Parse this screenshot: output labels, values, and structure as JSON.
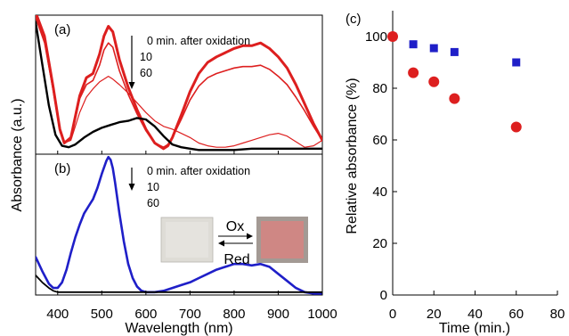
{
  "figure": {
    "panel_a_label": "(a)",
    "panel_b_label": "(b)",
    "panel_c_label": "(c)",
    "left_xlabel": "Wavelength (nm)",
    "left_ylabel": "Absorbance (a.u.)",
    "left_xticks": [
      "400",
      "500",
      "600",
      "700",
      "800",
      "900",
      "1000"
    ],
    "a_legend": [
      "0 min. after oxidation",
      "10",
      "60"
    ],
    "b_legend": [
      "0 min. after oxidation",
      "10",
      "60"
    ],
    "inset_ox": "Ox",
    "inset_red": "Red",
    "c_xlabel": "Time (min.)",
    "c_ylabel": "Relative absorbance (%)",
    "c_xticks": [
      "0",
      "20",
      "40",
      "60",
      "80"
    ],
    "c_yticks": [
      "0",
      "20",
      "40",
      "60",
      "80",
      "100"
    ],
    "colors": {
      "red": "#dd1f1f",
      "blue": "#1f1fc8",
      "black": "#000000"
    }
  },
  "chart_data": [
    {
      "type": "line",
      "panel": "a",
      "xlabel": "Wavelength (nm)",
      "ylabel": "Absorbance (a.u.)",
      "xlim": [
        350,
        1000
      ],
      "ylim": [
        0,
        1
      ],
      "series": [
        {
          "color": "#dd1f1f",
          "width": 3,
          "x": [
            350,
            370,
            390,
            405,
            415,
            430,
            450,
            465,
            480,
            495,
            505,
            515,
            525,
            540,
            560,
            580,
            600,
            620,
            640,
            650,
            660,
            680,
            700,
            720,
            740,
            760,
            780,
            800,
            820,
            840,
            860,
            880,
            900,
            920,
            940,
            960,
            980,
            1000
          ],
          "y": [
            1.02,
            0.85,
            0.48,
            0.18,
            0.08,
            0.12,
            0.42,
            0.55,
            0.58,
            0.72,
            0.85,
            0.92,
            0.88,
            0.68,
            0.48,
            0.32,
            0.18,
            0.08,
            0.04,
            0.06,
            0.12,
            0.28,
            0.45,
            0.58,
            0.66,
            0.7,
            0.73,
            0.76,
            0.78,
            0.78,
            0.8,
            0.76,
            0.7,
            0.62,
            0.5,
            0.36,
            0.22,
            0.1
          ]
        },
        {
          "color": "#dd1f1f",
          "width": 1.6,
          "x": [
            350,
            370,
            390,
            405,
            415,
            430,
            450,
            465,
            480,
            495,
            505,
            515,
            525,
            540,
            560,
            580,
            600,
            620,
            640,
            650,
            660,
            680,
            700,
            720,
            740,
            760,
            780,
            800,
            820,
            840,
            860,
            880,
            900,
            920,
            940,
            960,
            980,
            1000
          ],
          "y": [
            1.0,
            0.82,
            0.46,
            0.17,
            0.08,
            0.11,
            0.4,
            0.5,
            0.53,
            0.64,
            0.75,
            0.8,
            0.77,
            0.6,
            0.43,
            0.29,
            0.17,
            0.08,
            0.05,
            0.07,
            0.12,
            0.25,
            0.39,
            0.49,
            0.55,
            0.58,
            0.6,
            0.62,
            0.63,
            0.63,
            0.64,
            0.61,
            0.56,
            0.5,
            0.41,
            0.31,
            0.2,
            0.1
          ]
        },
        {
          "color": "#dd1f1f",
          "width": 1.2,
          "x": [
            350,
            370,
            390,
            405,
            415,
            430,
            450,
            465,
            480,
            495,
            505,
            515,
            525,
            540,
            560,
            580,
            600,
            620,
            640,
            660,
            680,
            700,
            720,
            740,
            760,
            780,
            800,
            820,
            840,
            860,
            880,
            900,
            920,
            940,
            960,
            980,
            1000
          ],
          "y": [
            0.98,
            0.8,
            0.45,
            0.16,
            0.08,
            0.1,
            0.3,
            0.41,
            0.47,
            0.52,
            0.54,
            0.56,
            0.54,
            0.5,
            0.44,
            0.37,
            0.3,
            0.24,
            0.2,
            0.18,
            0.15,
            0.12,
            0.08,
            0.06,
            0.05,
            0.05,
            0.06,
            0.08,
            0.1,
            0.12,
            0.14,
            0.15,
            0.13,
            0.09,
            0.05,
            0.06,
            0.1
          ]
        },
        {
          "color": "#000000",
          "width": 2.4,
          "x": [
            350,
            365,
            380,
            395,
            410,
            425,
            440,
            460,
            480,
            500,
            520,
            540,
            560,
            580,
            600,
            620,
            640,
            660,
            680,
            700,
            720,
            740,
            760,
            800,
            840,
            880,
            920,
            960,
            1000
          ],
          "y": [
            0.95,
            0.65,
            0.35,
            0.14,
            0.06,
            0.05,
            0.07,
            0.12,
            0.16,
            0.19,
            0.21,
            0.23,
            0.24,
            0.26,
            0.25,
            0.2,
            0.13,
            0.07,
            0.05,
            0.04,
            0.03,
            0.03,
            0.03,
            0.03,
            0.04,
            0.04,
            0.04,
            0.04,
            0.04
          ]
        }
      ]
    },
    {
      "type": "line",
      "panel": "b",
      "xlabel": "Wavelength (nm)",
      "ylabel": "Absorbance (a.u.)",
      "xlim": [
        350,
        1000
      ],
      "ylim": [
        0,
        1
      ],
      "series": [
        {
          "color": "#1f1fc8",
          "width": 2.6,
          "x": [
            350,
            365,
            380,
            390,
            400,
            410,
            420,
            430,
            440,
            450,
            460,
            470,
            480,
            490,
            500,
            510,
            515,
            520,
            525,
            530,
            540,
            550,
            560,
            570,
            580,
            590,
            600,
            610,
            620,
            640,
            660,
            680,
            700,
            720,
            740,
            760,
            780,
            800,
            820,
            840,
            860,
            880,
            900,
            920,
            940,
            960,
            980,
            1000
          ],
          "y": [
            0.27,
            0.17,
            0.08,
            0.05,
            0.05,
            0.09,
            0.18,
            0.3,
            0.41,
            0.5,
            0.58,
            0.63,
            0.68,
            0.76,
            0.86,
            0.95,
            0.98,
            0.96,
            0.9,
            0.8,
            0.58,
            0.38,
            0.22,
            0.12,
            0.06,
            0.03,
            0.02,
            0.02,
            0.02,
            0.03,
            0.05,
            0.07,
            0.09,
            0.12,
            0.15,
            0.18,
            0.2,
            0.22,
            0.22,
            0.21,
            0.22,
            0.2,
            0.15,
            0.1,
            0.05,
            0.02,
            0.01,
            0.01
          ]
        },
        {
          "color": "#000000",
          "width": 1.8,
          "x": [
            350,
            365,
            380,
            390,
            400,
            410,
            420,
            450,
            500,
            550,
            600,
            650,
            700,
            750,
            800,
            850,
            900,
            950,
            1000
          ],
          "y": [
            0.14,
            0.09,
            0.05,
            0.03,
            0.02,
            0.02,
            0.02,
            0.02,
            0.02,
            0.02,
            0.02,
            0.02,
            0.02,
            0.02,
            0.02,
            0.02,
            0.02,
            0.02,
            0.02
          ]
        }
      ]
    },
    {
      "type": "scatter",
      "panel": "c",
      "xlabel": "Time (min.)",
      "ylabel": "Relative absorbance (%)",
      "xlim": [
        0,
        80
      ],
      "ylim": [
        0,
        110
      ],
      "series": [
        {
          "color": "#1f1fc8",
          "marker": "square",
          "x": [
            0,
            10,
            20,
            30,
            60
          ],
          "y": [
            100,
            97,
            95.5,
            94,
            90
          ]
        },
        {
          "color": "#dd1f1f",
          "marker": "circle",
          "x": [
            0,
            10,
            20,
            30,
            60
          ],
          "y": [
            100,
            86,
            82.5,
            76,
            65
          ]
        }
      ]
    }
  ]
}
